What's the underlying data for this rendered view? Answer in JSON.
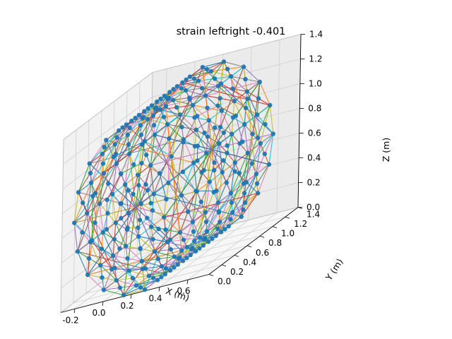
{
  "chart_data": {
    "type": "scatter",
    "title": "strain leftright -0.401",
    "xlabel": "X (m)",
    "ylabel": "Y (m)",
    "zlabel": "Z (m)",
    "xlim": [
      -0.3,
      0.75
    ],
    "ylim": [
      0.0,
      1.4
    ],
    "zlim": [
      0.0,
      1.4
    ],
    "x_ticks": [
      "-0.2",
      "0.0",
      "0.2",
      "0.4",
      "0.6"
    ],
    "y_ticks": [
      "0.0",
      "0.2",
      "0.4",
      "0.6",
      "0.8",
      "1.0",
      "1.2",
      "1.4"
    ],
    "z_ticks": [
      "0.0",
      "0.2",
      "0.4",
      "0.6",
      "0.8",
      "1.0",
      "1.2",
      "1.4"
    ],
    "grid": true,
    "projection": "3d",
    "marker_color": "#1f77b4",
    "edge_colors": [
      "#1f77b4",
      "#ff7f0e",
      "#2ca02c",
      "#d62728",
      "#9467bd",
      "#8c564b",
      "#e377c2",
      "#7f7f7f",
      "#bcbd22",
      "#17becf"
    ],
    "shape": "cylinder",
    "cylinder": {
      "center_x": 0.22,
      "center_z": 0.7,
      "radius": 0.7,
      "y_start": 0.0,
      "y_end": 1.2
    }
  }
}
